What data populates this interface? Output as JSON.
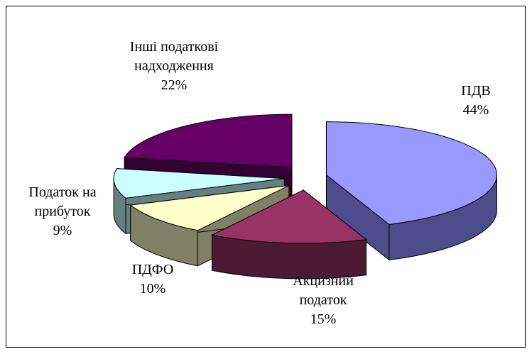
{
  "chart_data": {
    "type": "pie3d",
    "categories": [
      "ПДВ",
      "Акцизний податок",
      "ПДФО",
      "Податок на прибуток",
      "Інші податкові надходження"
    ],
    "values": [
      44,
      15,
      10,
      9,
      22
    ],
    "value_labels": [
      "44%",
      "15%",
      "10%",
      "9%",
      "22%"
    ],
    "colors": [
      "#9999ff",
      "#993366",
      "#ffffcc",
      "#ccffff",
      "#660066"
    ],
    "side_colors": [
      "#4d4d8c",
      "#4d1a33",
      "#808066",
      "#668080",
      "#330033"
    ]
  }
}
